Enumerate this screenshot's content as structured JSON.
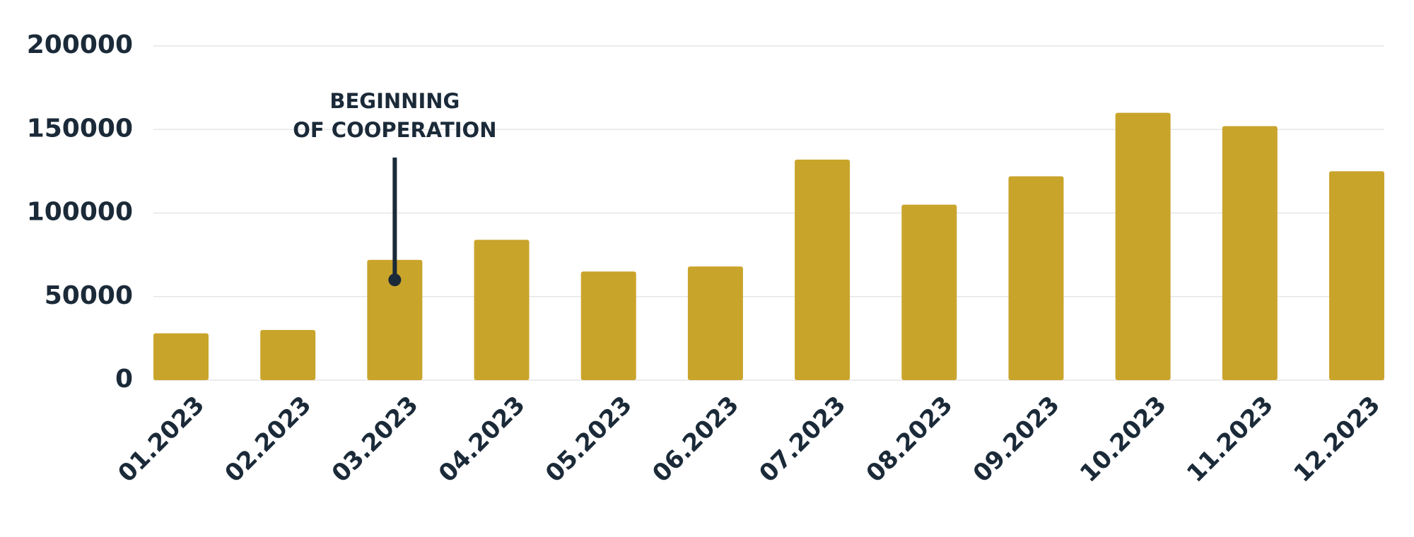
{
  "chart_data": {
    "type": "bar",
    "categories": [
      "01.2023",
      "02.2023",
      "03.2023",
      "04.2023",
      "05.2023",
      "06.2023",
      "07.2023",
      "08.2023",
      "09.2023",
      "10.2023",
      "11.2023",
      "12.2023"
    ],
    "values": [
      28000,
      30000,
      72000,
      84000,
      65000,
      68000,
      132000,
      105000,
      122000,
      160000,
      152000,
      125000
    ],
    "color": "#c9a42b",
    "ylim": [
      0,
      200000
    ],
    "yticks": [
      0,
      50000,
      100000,
      150000,
      200000
    ],
    "grid": true,
    "annotation": {
      "text": [
        "BEGINNING",
        "OF COOPERATION"
      ],
      "category": "03.2023",
      "value": 60000
    }
  }
}
